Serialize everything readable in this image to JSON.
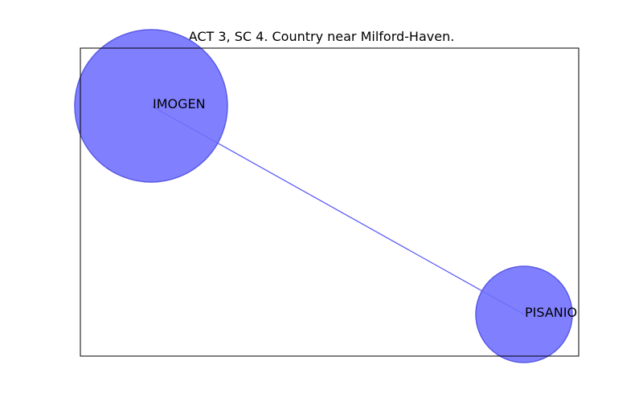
{
  "title": "ACT 3, SC 4. Country near Milford-Haven.",
  "nodes": [
    {
      "id": "imogen",
      "label": "IMOGEN"
    },
    {
      "id": "pisanio",
      "label": "PISANIO"
    }
  ],
  "edges": [
    {
      "from": "imogen",
      "to": "pisanio"
    }
  ],
  "colors": {
    "node_fill": "#8080ff",
    "node_stroke": "#5a5ae6",
    "edge": "#6b6bff",
    "frame": "#000000"
  }
}
